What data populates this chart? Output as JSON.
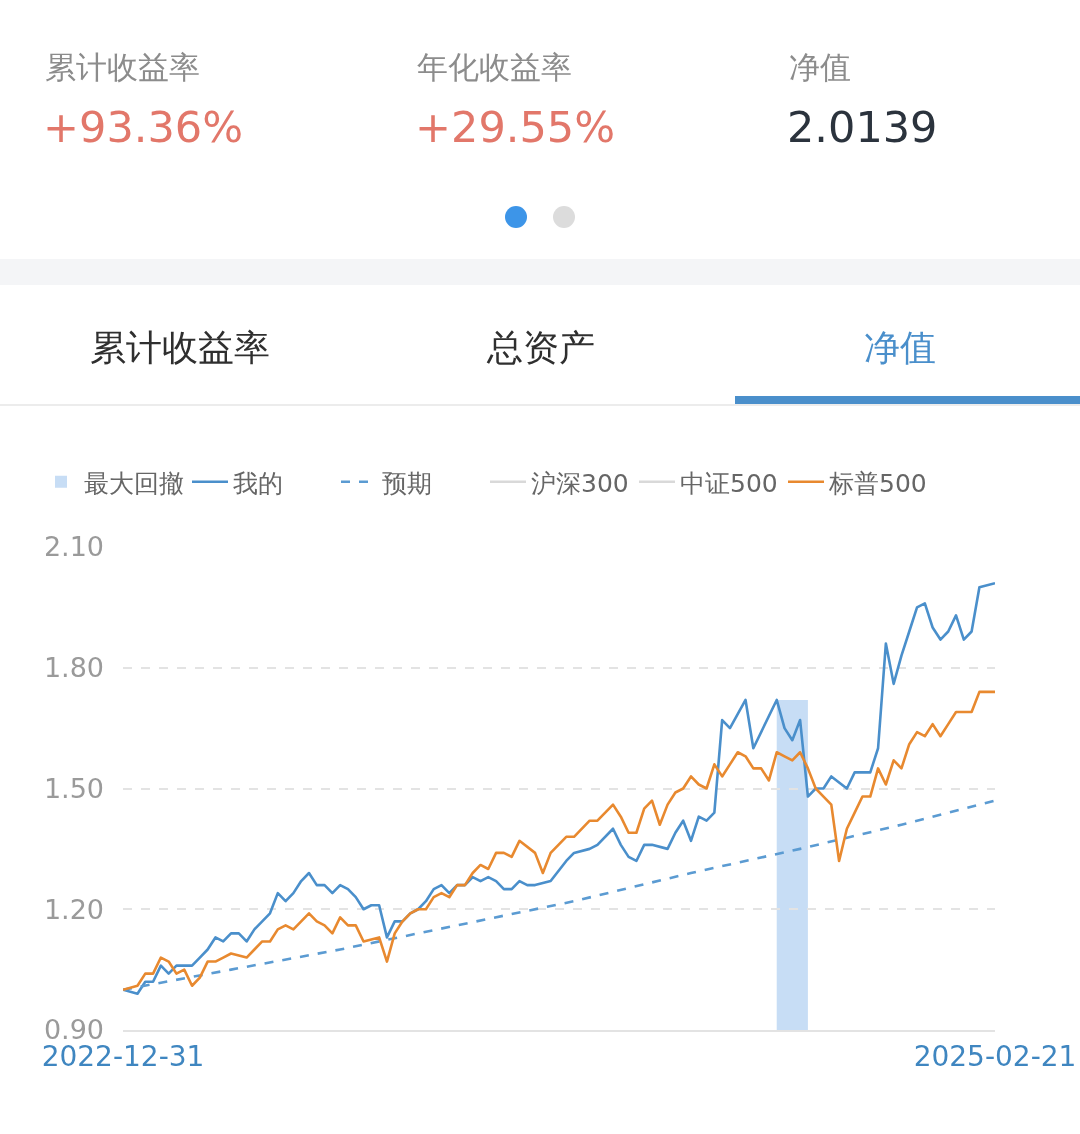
{
  "chart_data": [
    {
      "type": "other",
      "annotations": [
        "累计收益率",
        "+93.36%",
        "年化收益率",
        "+29.55%",
        "净值",
        "2.0139",
        "累计收益率",
        "总资产",
        "净值"
      ]
    },
    {
      "type": "line",
      "legend": "top",
      "grid": "y",
      "xlim": [
        "2022-12-31",
        "2025-02-21"
      ],
      "xticks": [
        {
          "value": "2022-12-31",
          "label": "2022-12-31"
        },
        {
          "value": "2025-02-21",
          "label": "2025-02-21"
        }
      ],
      "ylim": [
        0.9,
        2.1
      ],
      "yticks": [
        {
          "value": 0.9,
          "label": "0.90"
        },
        {
          "value": 1.2,
          "label": "1.20"
        },
        {
          "value": 1.5,
          "label": "1.50"
        },
        {
          "value": 1.8,
          "label": "1.80"
        },
        {
          "value": 2.1,
          "label": "2.10"
        }
      ],
      "bands": [
        {
          "axis": "x",
          "from": "2024-08-09",
          "to": "2024-09-06",
          "label": "最大回撤",
          "color": "#c7ddf5"
        }
      ],
      "series": [
        {
          "name": "我的",
          "color": "#4a8fcb",
          "x": [
            "2022-12-31",
            "2023-01-13",
            "2023-01-20",
            "2023-01-27",
            "2023-02-03",
            "2023-02-10",
            "2023-02-17",
            "2023-02-24",
            "2023-03-03",
            "2023-03-10",
            "2023-03-17",
            "2023-03-24",
            "2023-03-31",
            "2023-04-07",
            "2023-04-14",
            "2023-04-21",
            "2023-04-28",
            "2023-05-12",
            "2023-05-19",
            "2023-05-26",
            "2023-06-02",
            "2023-06-09",
            "2023-06-16",
            "2023-06-23",
            "2023-06-30",
            "2023-07-07",
            "2023-07-14",
            "2023-07-21",
            "2023-07-28",
            "2023-08-04",
            "2023-08-11",
            "2023-08-18",
            "2023-08-25",
            "2023-09-01",
            "2023-09-08",
            "2023-09-15",
            "2023-09-22",
            "2023-09-29",
            "2023-10-06",
            "2023-10-13",
            "2023-10-20",
            "2023-10-27",
            "2023-11-03",
            "2023-11-10",
            "2023-11-17",
            "2023-11-24",
            "2023-12-01",
            "2023-12-08",
            "2023-12-15",
            "2023-12-22",
            "2023-12-29",
            "2024-01-05",
            "2024-01-19",
            "2024-02-02",
            "2024-02-09",
            "2024-02-23",
            "2024-03-01",
            "2024-03-15",
            "2024-03-22",
            "2024-03-29",
            "2024-04-05",
            "2024-04-12",
            "2024-04-19",
            "2024-05-03",
            "2024-05-10",
            "2024-05-17",
            "2024-05-24",
            "2024-05-31",
            "2024-06-07",
            "2024-06-14",
            "2024-06-21",
            "2024-06-28",
            "2024-07-12",
            "2024-07-19",
            "2024-08-09",
            "2024-08-16",
            "2024-08-23",
            "2024-08-30",
            "2024-09-06",
            "2024-09-13",
            "2024-09-20",
            "2024-09-27",
            "2024-10-11",
            "2024-10-18",
            "2024-11-01",
            "2024-11-08",
            "2024-11-15",
            "2024-11-22",
            "2024-11-29",
            "2024-12-06",
            "2024-12-13",
            "2024-12-20",
            "2024-12-27",
            "2025-01-03",
            "2025-01-10",
            "2025-01-17",
            "2025-01-24",
            "2025-01-31",
            "2025-02-07",
            "2025-02-21"
          ],
          "values": [
            1.0,
            0.99,
            1.02,
            1.02,
            1.06,
            1.04,
            1.06,
            1.06,
            1.06,
            1.08,
            1.1,
            1.13,
            1.12,
            1.14,
            1.14,
            1.12,
            1.15,
            1.19,
            1.24,
            1.22,
            1.24,
            1.27,
            1.29,
            1.26,
            1.26,
            1.24,
            1.26,
            1.25,
            1.23,
            1.2,
            1.21,
            1.21,
            1.13,
            1.17,
            1.17,
            1.19,
            1.2,
            1.22,
            1.25,
            1.26,
            1.24,
            1.26,
            1.26,
            1.28,
            1.27,
            1.28,
            1.27,
            1.25,
            1.25,
            1.27,
            1.26,
            1.26,
            1.27,
            1.32,
            1.34,
            1.35,
            1.36,
            1.4,
            1.36,
            1.33,
            1.32,
            1.36,
            1.36,
            1.35,
            1.39,
            1.42,
            1.37,
            1.43,
            1.42,
            1.44,
            1.67,
            1.65,
            1.72,
            1.6,
            1.72,
            1.65,
            1.62,
            1.67,
            1.48,
            1.5,
            1.5,
            1.53,
            1.5,
            1.54,
            1.54,
            1.6,
            1.86,
            1.76,
            1.83,
            1.89,
            1.95,
            1.96,
            1.9,
            1.87,
            1.89,
            1.93,
            1.87,
            1.89,
            2.0,
            2.01
          ]
        },
        {
          "name": "预期",
          "color": "#5b9bd2",
          "line_style": "dashed",
          "x": [
            "2022-12-31",
            "2023-04-07",
            "2023-07-14",
            "2023-10-27",
            "2024-02-09",
            "2024-05-24",
            "2024-08-30",
            "2024-11-29",
            "2025-02-21"
          ],
          "values": [
            1.0,
            1.05,
            1.1,
            1.16,
            1.22,
            1.29,
            1.35,
            1.41,
            1.47
          ]
        },
        {
          "name": "沪深300",
          "color": "#d9d9d9",
          "values": [
            null
          ]
        },
        {
          "name": "中证500",
          "color": "#d9d9d9",
          "values": [
            null
          ]
        },
        {
          "name": "标普500",
          "color": "#e8892f",
          "x": [
            "2022-12-31",
            "2023-01-13",
            "2023-01-20",
            "2023-01-27",
            "2023-02-03",
            "2023-02-10",
            "2023-02-17",
            "2023-02-24",
            "2023-03-03",
            "2023-03-10",
            "2023-03-17",
            "2023-03-24",
            "2023-03-31",
            "2023-04-07",
            "2023-04-21",
            "2023-04-28",
            "2023-05-05",
            "2023-05-12",
            "2023-05-19",
            "2023-05-26",
            "2023-06-02",
            "2023-06-09",
            "2023-06-16",
            "2023-06-23",
            "2023-06-30",
            "2023-07-07",
            "2023-07-14",
            "2023-07-21",
            "2023-07-28",
            "2023-08-04",
            "2023-08-18",
            "2023-08-25",
            "2023-09-01",
            "2023-09-08",
            "2023-09-15",
            "2023-09-22",
            "2023-09-29",
            "2023-10-06",
            "2023-10-13",
            "2023-10-20",
            "2023-10-27",
            "2023-11-03",
            "2023-11-10",
            "2023-11-17",
            "2023-11-24",
            "2023-12-01",
            "2023-12-08",
            "2023-12-15",
            "2023-12-22",
            "2024-01-05",
            "2024-01-12",
            "2024-01-19",
            "2024-02-02",
            "2024-02-09",
            "2024-02-23",
            "2024-03-01",
            "2024-03-15",
            "2024-03-22",
            "2024-03-29",
            "2024-04-05",
            "2024-04-12",
            "2024-04-19",
            "2024-04-26",
            "2024-05-03",
            "2024-05-10",
            "2024-05-17",
            "2024-05-24",
            "2024-05-31",
            "2024-06-07",
            "2024-06-14",
            "2024-06-21",
            "2024-06-28",
            "2024-07-05",
            "2024-07-12",
            "2024-07-19",
            "2024-07-26",
            "2024-08-02",
            "2024-08-09",
            "2024-08-16",
            "2024-08-23",
            "2024-08-30",
            "2024-09-06",
            "2024-09-13",
            "2024-09-20",
            "2024-09-27",
            "2024-10-04",
            "2024-10-11",
            "2024-10-18",
            "2024-10-25",
            "2024-11-01",
            "2024-11-08",
            "2024-11-15",
            "2024-11-22",
            "2024-11-29",
            "2024-12-06",
            "2024-12-13",
            "2024-12-20",
            "2024-12-27",
            "2025-01-03",
            "2025-01-10",
            "2025-01-17",
            "2025-01-24",
            "2025-01-31",
            "2025-02-07",
            "2025-02-21"
          ],
          "values": [
            1.0,
            1.01,
            1.04,
            1.04,
            1.08,
            1.07,
            1.04,
            1.05,
            1.01,
            1.03,
            1.07,
            1.07,
            1.08,
            1.09,
            1.08,
            1.1,
            1.12,
            1.12,
            1.15,
            1.16,
            1.15,
            1.17,
            1.19,
            1.17,
            1.16,
            1.14,
            1.18,
            1.16,
            1.16,
            1.12,
            1.13,
            1.07,
            1.14,
            1.17,
            1.19,
            1.2,
            1.2,
            1.23,
            1.24,
            1.23,
            1.26,
            1.26,
            1.29,
            1.31,
            1.3,
            1.34,
            1.34,
            1.33,
            1.37,
            1.34,
            1.29,
            1.34,
            1.38,
            1.38,
            1.42,
            1.42,
            1.46,
            1.43,
            1.39,
            1.39,
            1.45,
            1.47,
            1.41,
            1.46,
            1.49,
            1.5,
            1.53,
            1.51,
            1.5,
            1.56,
            1.53,
            1.56,
            1.59,
            1.58,
            1.55,
            1.55,
            1.52,
            1.59,
            1.58,
            1.57,
            1.59,
            1.55,
            1.5,
            1.48,
            1.46,
            1.32,
            1.4,
            1.44,
            1.48,
            1.48,
            1.55,
            1.51,
            1.57,
            1.55,
            1.61,
            1.64,
            1.63,
            1.66,
            1.63,
            1.66,
            1.69,
            1.69,
            1.69,
            1.74,
            1.74
          ]
        }
      ]
    }
  ]
}
